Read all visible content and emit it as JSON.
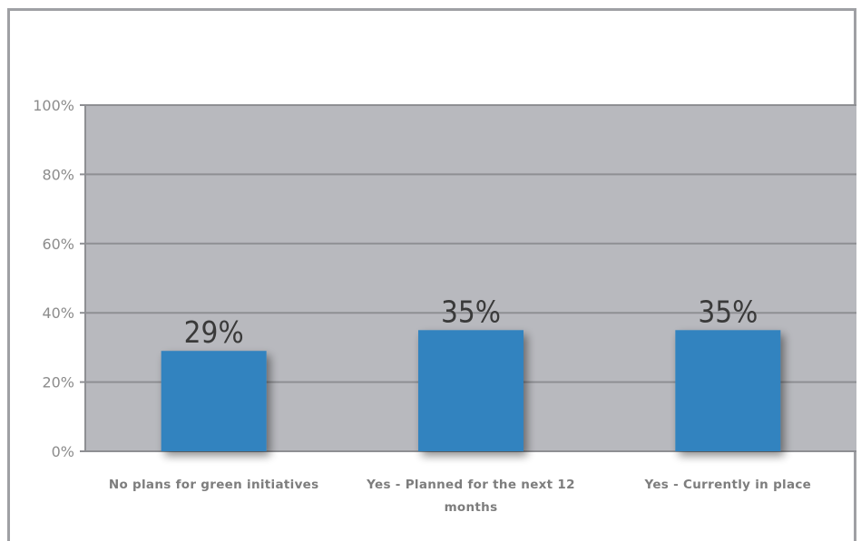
{
  "chart_data": {
    "type": "bar",
    "categories": [
      [
        "No plans for green initiatives"
      ],
      [
        "Yes - Planned for the next 12",
        "months"
      ],
      [
        "Yes - Currently in place"
      ]
    ],
    "values": [
      29,
      35,
      35
    ],
    "value_labels": [
      "29%",
      "35%",
      "35%"
    ],
    "yticks": [
      "0%",
      "20%",
      "40%",
      "60%",
      "80%",
      "100%"
    ],
    "ylim": [
      0,
      100
    ],
    "grid": true,
    "title": "",
    "xlabel": "",
    "ylabel": ""
  },
  "colors": {
    "plot_background": "#b8b9be",
    "bar": "#3383bf",
    "gridline": "#8e8f93",
    "frame": "#9fa0a4"
  }
}
